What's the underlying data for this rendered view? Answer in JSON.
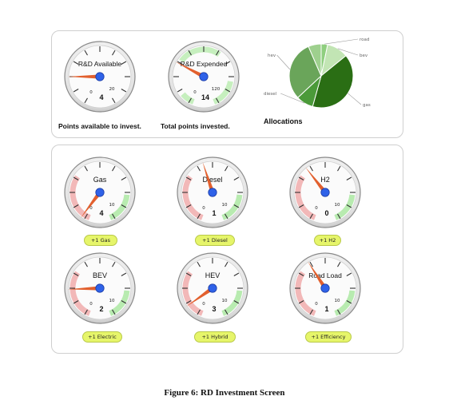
{
  "top": {
    "gauges": [
      {
        "id": "rd-available",
        "title": "R&D Available",
        "value": 4,
        "ticks": [
          "0",
          "20"
        ],
        "needle_angle": -90,
        "band": "none",
        "caption": "Points available to invest."
      },
      {
        "id": "rd-expended",
        "title": "R&D Expended",
        "value": 14,
        "ticks": [
          "0",
          "120"
        ],
        "needle_angle": -62,
        "band": "expended",
        "caption": "Total points invested."
      }
    ],
    "allocations_label": "Allocations",
    "pie": {
      "slices": [
        {
          "label": "road",
          "value": 3,
          "color": "#8fcf7f"
        },
        {
          "label": "bev",
          "value": 10,
          "color": "#c2e5b4"
        },
        {
          "label": "gas",
          "value": 37,
          "color": "#2a6e14"
        },
        {
          "label": "diesel",
          "value": 8,
          "color": "#4b9a39"
        },
        {
          "label": "hev",
          "value": 28,
          "color": "#6aa55a"
        },
        {
          "label": "",
          "value": 6,
          "color": "#9ed08e"
        }
      ]
    }
  },
  "bottom": {
    "gauges": [
      {
        "id": "gas",
        "title": "Gas",
        "value": 4,
        "ticks": [
          "0",
          "10"
        ],
        "needle_angle": -143,
        "band": "redgreen",
        "button": "+1 Gas"
      },
      {
        "id": "diesel",
        "title": "Diesel",
        "value": 1,
        "ticks": [
          "0",
          "10"
        ],
        "needle_angle": -18,
        "band": "redgreen",
        "button": "+1 Diesel"
      },
      {
        "id": "h2",
        "title": "H2",
        "value": 0,
        "ticks": [
          "0",
          "10"
        ],
        "needle_angle": -38,
        "band": "redgreen",
        "button": "+1 H2"
      },
      {
        "id": "bev",
        "title": "BEV",
        "value": 2,
        "ticks": [
          "0",
          "10"
        ],
        "needle_angle": -92,
        "band": "redgreen",
        "button": "+1 Electric"
      },
      {
        "id": "hev",
        "title": "HEV",
        "value": 3,
        "ticks": [
          "0",
          "10"
        ],
        "needle_angle": -125,
        "band": "redgreen",
        "button": "+1 Hybrid"
      },
      {
        "id": "road-load",
        "title": "Road Load",
        "value": 1,
        "ticks": [
          "0",
          "10"
        ],
        "needle_angle": -33,
        "band": "redgreen",
        "button": "+1 Efficiency"
      }
    ]
  },
  "figure_caption": "Figure 6: RD Investment Screen"
}
